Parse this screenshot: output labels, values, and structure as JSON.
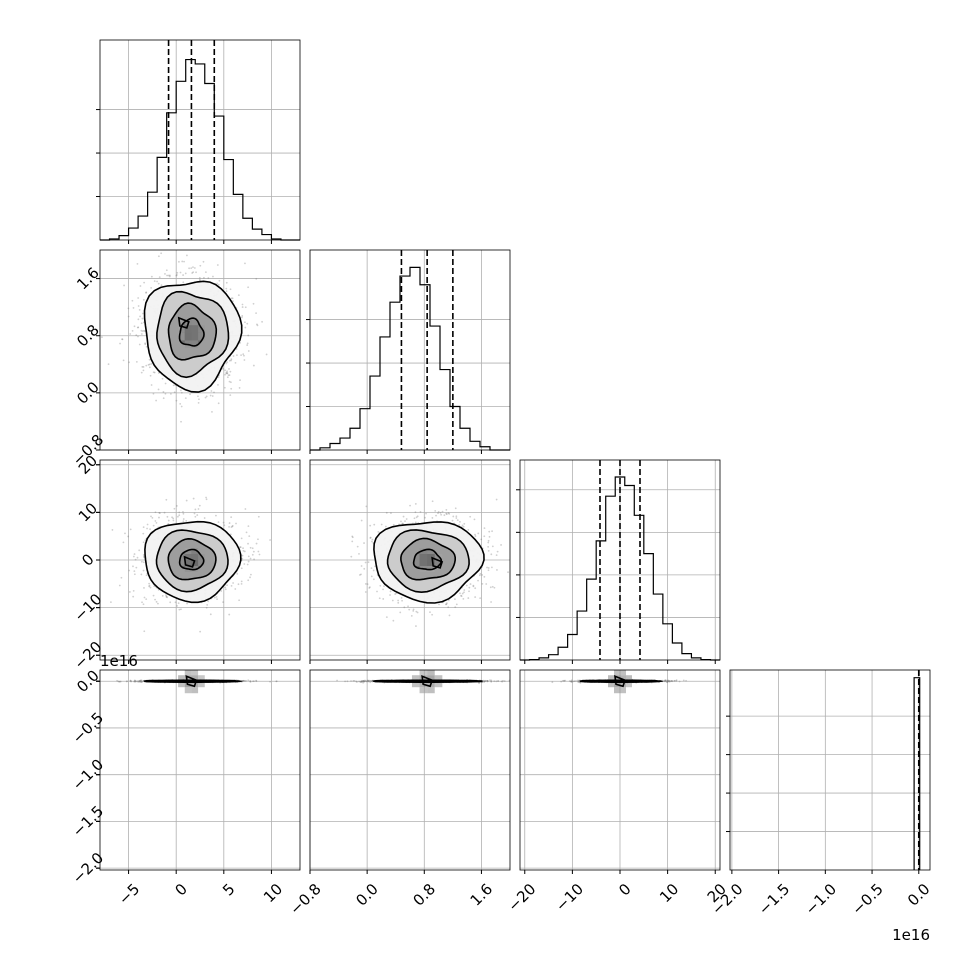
{
  "chart_data": {
    "type": "corner",
    "grid": true,
    "offset_text": "1e16",
    "parameters": [
      {
        "range": [
          -8,
          13
        ],
        "ticks": [
          -5,
          0,
          5,
          10
        ],
        "tick_labels": [
          "−5",
          "0",
          "5",
          "10"
        ],
        "quantiles": [
          -0.8,
          1.6,
          4.0
        ],
        "histogram": {
          "bin_edges": [
            -8,
            -7,
            -6,
            -5,
            -4,
            -3,
            -2,
            -1,
            0,
            1,
            2,
            3,
            4,
            5,
            6,
            7,
            8,
            9,
            10,
            11,
            12,
            13
          ],
          "counts": [
            0.0,
            0.5,
            2.0,
            5.5,
            11.0,
            22.0,
            38.0,
            58.5,
            73.0,
            83.0,
            81.0,
            72.0,
            57.0,
            37.0,
            21.0,
            10.0,
            5.0,
            2.5,
            0.5,
            0.0,
            0.0
          ]
        },
        "hist_ymax": 92,
        "hist_yticks": [
          20,
          40,
          60
        ]
      },
      {
        "range": [
          -0.8,
          2.0
        ],
        "ticks": [
          -0.8,
          0.0,
          0.8,
          1.6
        ],
        "tick_labels": [
          "−0.8",
          "0.0",
          "0.8",
          "1.6"
        ],
        "quantiles": [
          0.48,
          0.84,
          1.2
        ],
        "histogram": {
          "bin_edges": [
            -0.8,
            -0.66,
            -0.52,
            -0.38,
            -0.24,
            -0.1,
            0.04,
            0.18,
            0.32,
            0.46,
            0.6,
            0.74,
            0.88,
            1.02,
            1.16,
            1.3,
            1.44,
            1.58,
            1.72,
            1.86,
            2.0
          ],
          "counts": [
            0.0,
            1.0,
            3.0,
            5.5,
            10.0,
            19.0,
            34.0,
            52.0,
            68.0,
            80.0,
            84.0,
            76.0,
            57.0,
            37.0,
            20.0,
            10.0,
            4.0,
            1.5,
            0.0,
            0.0
          ]
        },
        "hist_ymax": 92,
        "hist_yticks": [
          20,
          40,
          60
        ]
      },
      {
        "range": [
          -21,
          21
        ],
        "ticks": [
          -20,
          -10,
          0,
          10,
          20
        ],
        "tick_labels": [
          "−20",
          "−10",
          "0",
          "10",
          "20"
        ],
        "quantiles": [
          -4.2,
          0.0,
          4.2
        ],
        "histogram": {
          "bin_edges": [
            -21,
            -19,
            -17,
            -15,
            -13,
            -11,
            -9,
            -7,
            -5,
            -3,
            -1,
            1,
            3,
            5,
            7,
            9,
            11,
            13,
            15,
            17,
            19,
            21
          ],
          "counts": [
            0.0,
            0.2,
            1.0,
            2.5,
            6.0,
            12.0,
            23.0,
            38.0,
            56.0,
            77.0,
            86.0,
            82.0,
            68.0,
            50.0,
            31.0,
            17.0,
            8.0,
            3.0,
            1.0,
            0.2,
            0.0
          ]
        },
        "hist_ymax": 94,
        "hist_yticks": [
          20,
          40,
          60,
          80
        ]
      },
      {
        "range": [
          -2.02,
          0.12
        ],
        "scale_note": "values in units of 1e16",
        "ticks": [
          -2.0,
          -1.5,
          -1.0,
          -0.5,
          0.0
        ],
        "tick_labels": [
          "−2.0",
          "−1.5",
          "−1.0",
          "−0.5",
          "0.0"
        ],
        "yticks": [
          0.0,
          -0.5,
          -1.0,
          -1.5,
          -2.0
        ],
        "ytick_labels": [
          "0.0",
          "−0.5",
          "−1.0",
          "−1.5",
          "−2.0"
        ],
        "quantiles": [
          0.0,
          0.0,
          0.0
        ],
        "histogram": {
          "bin_edges": [
            -0.05,
            0.01
          ],
          "counts": [
            100
          ]
        },
        "hist_ymax": 104,
        "hist_yticks": [
          20,
          40,
          60,
          80
        ]
      }
    ],
    "pairs": [
      {
        "row": 1,
        "col": 0,
        "center": [
          1.6,
          0.84
        ],
        "sigma": [
          2.5,
          0.38
        ],
        "peak": [
          0.8,
          0.98
        ],
        "jitter": 0.12
      },
      {
        "row": 2,
        "col": 0,
        "center": [
          1.6,
          0.0
        ],
        "sigma": [
          2.5,
          4.2
        ],
        "peak": [
          1.4,
          -0.4
        ],
        "jitter": 0.08
      },
      {
        "row": 2,
        "col": 1,
        "center": [
          0.84,
          0.0
        ],
        "sigma": [
          0.38,
          4.2
        ],
        "peak": [
          0.98,
          -0.6
        ],
        "jitter": 0.1
      },
      {
        "row": 3,
        "col": 0,
        "center": [
          1.6,
          0.0
        ],
        "sigma": [
          2.5,
          0.005
        ],
        "peak": [
          1.6,
          0.0
        ],
        "jitter": 0.04
      },
      {
        "row": 3,
        "col": 1,
        "center": [
          0.84,
          0.0
        ],
        "sigma": [
          0.38,
          0.005
        ],
        "peak": [
          0.84,
          0.0
        ],
        "jitter": 0.04
      },
      {
        "row": 3,
        "col": 2,
        "center": [
          0.0,
          0.0
        ],
        "sigma": [
          4.2,
          0.005
        ],
        "peak": [
          0.0,
          0.0
        ],
        "jitter": 0.04
      }
    ],
    "contour_levels_sigma": [
      0.5,
      1.0,
      1.5,
      2.0
    ]
  }
}
